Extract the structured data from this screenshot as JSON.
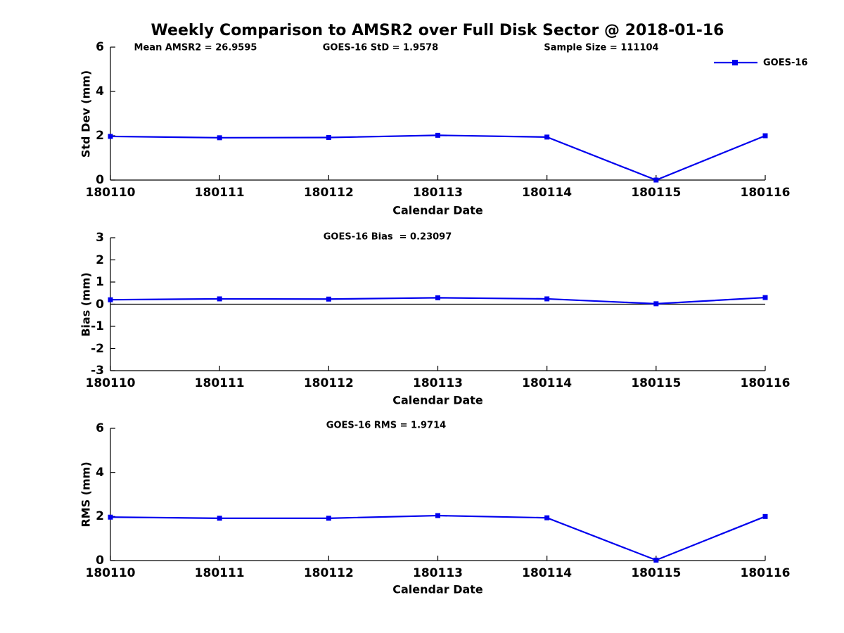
{
  "title": "Weekly Comparison to AMSR2 over Full Disk Sector @ 2018-01-16",
  "legend": {
    "label": "GOES-16"
  },
  "colors": {
    "series": "#0000EE",
    "axis": "#000000",
    "zero_line": "#000000"
  },
  "chart_data": [
    {
      "type": "line",
      "ylabel": "Std Dev (mm)",
      "xlabel": "Calendar Date",
      "x": [
        "180110",
        "180111",
        "180112",
        "180113",
        "180114",
        "180115",
        "180116"
      ],
      "ylim": [
        0,
        6
      ],
      "yticks": [
        6,
        4,
        2,
        0
      ],
      "grid": false,
      "legend_position": "top-right-outside",
      "annotations": [
        "Mean AMSR2 = 26.9595",
        "GOES-16 StD = 1.9578",
        "Sample Size = 111104"
      ],
      "series": [
        {
          "name": "GOES-16",
          "marker": "square",
          "values": [
            1.97,
            1.91,
            1.92,
            2.02,
            1.94,
            0.0,
            2.0
          ]
        }
      ]
    },
    {
      "type": "line",
      "ylabel": "Bias (mm)",
      "xlabel": "Calendar Date",
      "x": [
        "180110",
        "180111",
        "180112",
        "180113",
        "180114",
        "180115",
        "180116"
      ],
      "ylim": [
        -3,
        3
      ],
      "yticks": [
        3,
        2,
        1,
        0,
        -1,
        -2,
        -3
      ],
      "grid": false,
      "zero_line": true,
      "annotations": [
        "GOES-16 Bias  = 0.23097"
      ],
      "series": [
        {
          "name": "GOES-16",
          "marker": "square",
          "values": [
            0.2,
            0.24,
            0.23,
            0.29,
            0.24,
            0.02,
            0.3
          ]
        }
      ]
    },
    {
      "type": "line",
      "ylabel": "RMS (mm)",
      "xlabel": "Calendar Date",
      "x": [
        "180110",
        "180111",
        "180112",
        "180113",
        "180114",
        "180115",
        "180116"
      ],
      "ylim": [
        0,
        6
      ],
      "yticks": [
        6,
        4,
        2,
        0
      ],
      "grid": false,
      "annotations": [
        "GOES-16 RMS = 1.9714"
      ],
      "series": [
        {
          "name": "GOES-16",
          "marker": "square",
          "values": [
            1.97,
            1.92,
            1.92,
            2.04,
            1.94,
            0.02,
            2.0
          ]
        }
      ]
    }
  ]
}
